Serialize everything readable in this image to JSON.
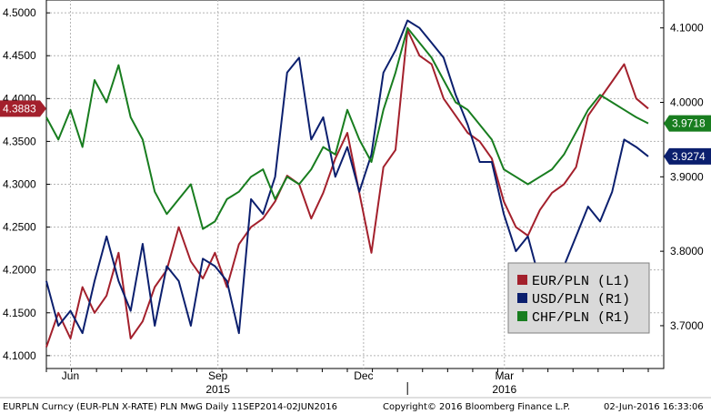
{
  "chart_data": {
    "type": "line",
    "left_axis": {
      "ylim": [
        4.085,
        4.515
      ],
      "ticks": [
        "4.1000",
        "4.1500",
        "4.2000",
        "4.2500",
        "4.3000",
        "4.3500",
        "4.4000",
        "4.4500",
        "4.5000"
      ]
    },
    "right_axis": {
      "ylim": [
        3.6425,
        4.1375
      ],
      "ticks": [
        "3.7000",
        "3.8000",
        "3.9000",
        "4.0000",
        "4.1000"
      ]
    },
    "x_ticks": [
      {
        "label": "Jun",
        "t": 0.04
      },
      {
        "label": "Sep",
        "t": 0.285
      },
      {
        "label": "Dec",
        "t": 0.527
      },
      {
        "label": "Mar",
        "t": 0.761
      }
    ],
    "year_labels": [
      {
        "label": "2015",
        "t": 0.285
      },
      {
        "label": "2016",
        "t": 0.761
      }
    ],
    "series": [
      {
        "name": "EUR/PLN (L1)",
        "axis": "left",
        "color": "#a3202c",
        "current": "4.3883",
        "t": [
          0.0,
          0.02,
          0.04,
          0.06,
          0.08,
          0.1,
          0.12,
          0.14,
          0.16,
          0.18,
          0.2,
          0.22,
          0.24,
          0.26,
          0.28,
          0.3,
          0.32,
          0.34,
          0.36,
          0.38,
          0.4,
          0.42,
          0.44,
          0.46,
          0.48,
          0.5,
          0.52,
          0.54,
          0.56,
          0.58,
          0.6,
          0.62,
          0.64,
          0.66,
          0.68,
          0.7,
          0.72,
          0.74,
          0.76,
          0.78,
          0.8,
          0.82,
          0.84,
          0.86,
          0.88,
          0.9,
          0.92,
          0.94,
          0.96,
          0.98,
          1.0
        ],
        "values": [
          4.11,
          4.15,
          4.12,
          4.18,
          4.15,
          4.17,
          4.22,
          4.12,
          4.14,
          4.18,
          4.2,
          4.25,
          4.21,
          4.19,
          4.22,
          4.18,
          4.23,
          4.25,
          4.26,
          4.28,
          4.31,
          4.3,
          4.26,
          4.29,
          4.33,
          4.36,
          4.29,
          4.22,
          4.32,
          4.34,
          4.48,
          4.45,
          4.44,
          4.4,
          4.38,
          4.36,
          4.35,
          4.33,
          4.28,
          4.25,
          4.24,
          4.27,
          4.29,
          4.3,
          4.32,
          4.38,
          4.4,
          4.42,
          4.44,
          4.4,
          4.3883
        ]
      },
      {
        "name": "USD/PLN (R1)",
        "axis": "right",
        "color": "#0b1f6e",
        "current": "3.9274",
        "t": [
          0.0,
          0.02,
          0.04,
          0.06,
          0.08,
          0.1,
          0.12,
          0.14,
          0.16,
          0.18,
          0.2,
          0.22,
          0.24,
          0.26,
          0.28,
          0.3,
          0.32,
          0.34,
          0.36,
          0.38,
          0.4,
          0.42,
          0.44,
          0.46,
          0.48,
          0.5,
          0.52,
          0.54,
          0.56,
          0.58,
          0.6,
          0.62,
          0.64,
          0.66,
          0.68,
          0.7,
          0.72,
          0.74,
          0.76,
          0.78,
          0.8,
          0.82,
          0.84,
          0.86,
          0.88,
          0.9,
          0.92,
          0.94,
          0.96,
          0.98,
          1.0
        ],
        "values": [
          3.76,
          3.7,
          3.72,
          3.69,
          3.76,
          3.82,
          3.76,
          3.72,
          3.81,
          3.7,
          3.78,
          3.76,
          3.7,
          3.79,
          3.78,
          3.76,
          3.69,
          3.87,
          3.85,
          3.9,
          4.04,
          4.06,
          3.95,
          3.98,
          3.9,
          3.94,
          3.88,
          3.93,
          4.04,
          4.07,
          4.11,
          4.1,
          4.08,
          4.06,
          4.01,
          3.97,
          3.92,
          3.92,
          3.85,
          3.8,
          3.82,
          3.76,
          3.75,
          3.78,
          3.82,
          3.86,
          3.84,
          3.88,
          3.95,
          3.94,
          3.9274
        ]
      },
      {
        "name": "CHF/PLN (R1)",
        "axis": "right",
        "color": "#187d1f",
        "current": "3.9718",
        "t": [
          0.0,
          0.02,
          0.04,
          0.06,
          0.08,
          0.1,
          0.12,
          0.14,
          0.16,
          0.18,
          0.2,
          0.22,
          0.24,
          0.26,
          0.28,
          0.3,
          0.32,
          0.34,
          0.36,
          0.38,
          0.4,
          0.42,
          0.44,
          0.46,
          0.48,
          0.5,
          0.52,
          0.54,
          0.56,
          0.58,
          0.6,
          0.62,
          0.64,
          0.66,
          0.68,
          0.7,
          0.72,
          0.74,
          0.76,
          0.78,
          0.8,
          0.82,
          0.84,
          0.86,
          0.88,
          0.9,
          0.92,
          0.94,
          0.96,
          0.98,
          1.0
        ],
        "values": [
          3.98,
          3.95,
          3.99,
          3.94,
          4.03,
          4.0,
          4.05,
          3.98,
          3.95,
          3.88,
          3.85,
          3.87,
          3.89,
          3.83,
          3.84,
          3.87,
          3.88,
          3.9,
          3.91,
          3.87,
          3.9,
          3.89,
          3.91,
          3.94,
          3.93,
          3.99,
          3.95,
          3.92,
          3.99,
          4.04,
          4.1,
          4.08,
          4.06,
          4.03,
          4.0,
          3.99,
          3.97,
          3.95,
          3.91,
          3.9,
          3.89,
          3.9,
          3.91,
          3.93,
          3.96,
          3.99,
          4.01,
          4.0,
          3.99,
          3.98,
          3.9718
        ]
      }
    ],
    "grid": true,
    "legend_position": "bottom-right"
  },
  "footer": {
    "left": "EURPLN Curncy (EUR-PLN X-RATE) PLN MwG  Daily 11SEP2014-02JUN2016",
    "center": "Copyright© 2016 Bloomberg Finance L.P.",
    "right": "02-Jun-2016 16:33:06"
  }
}
